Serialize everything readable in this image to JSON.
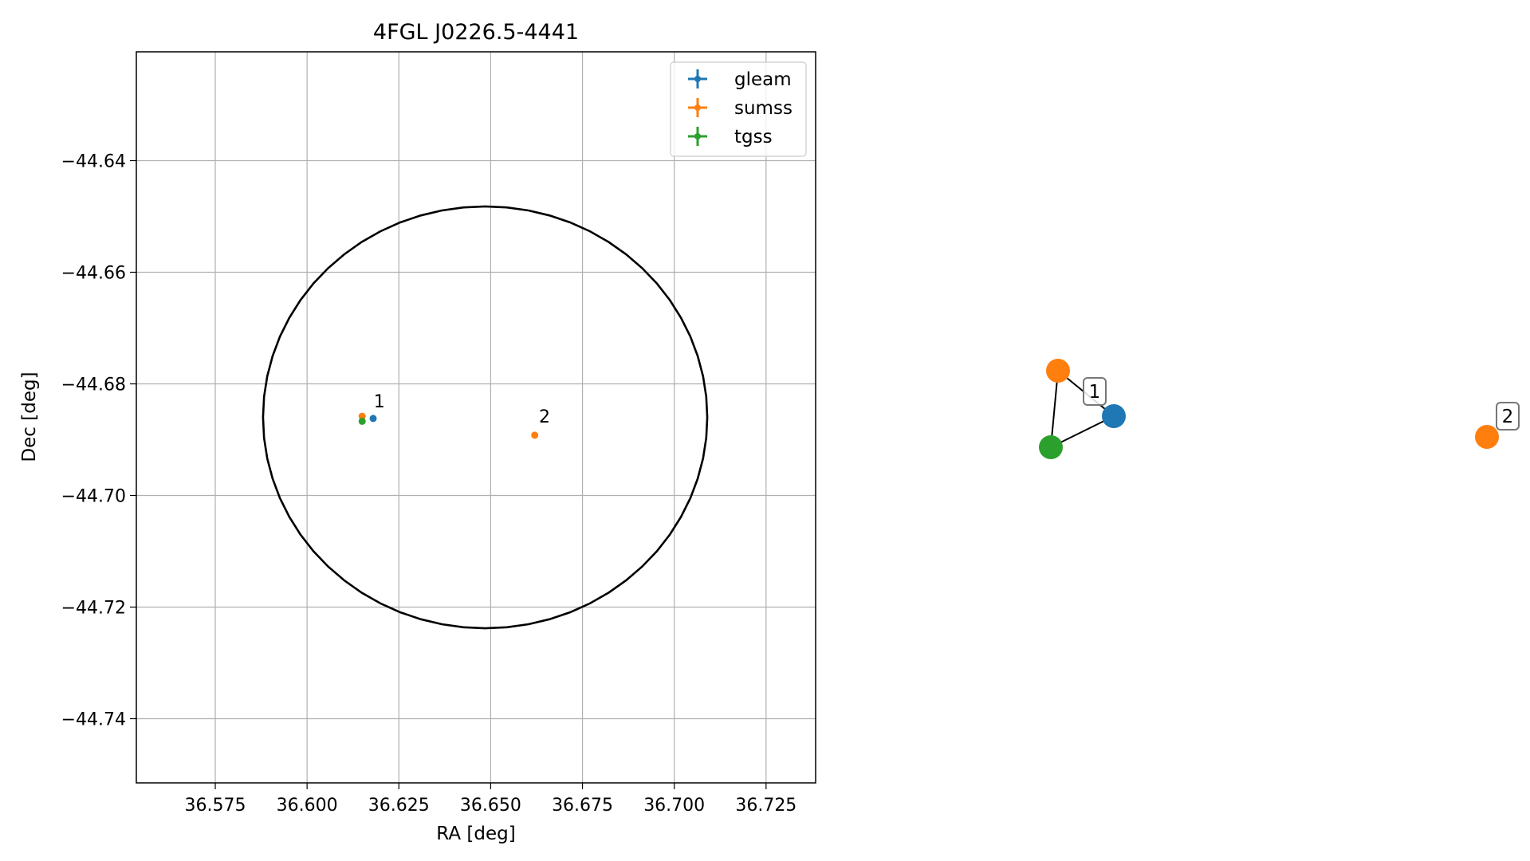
{
  "chart_data": [
    {
      "type": "scatter",
      "title": "4FGL J0226.5-4441",
      "xlabel": "RA [deg]",
      "ylabel": "Dec [deg]",
      "xlim": [
        36.5535,
        36.7385
      ],
      "ylim": [
        -44.7515,
        -44.6205
      ],
      "xticks": [
        36.575,
        36.6,
        36.625,
        36.65,
        36.675,
        36.7,
        36.725
      ],
      "xtick_labels": [
        "36.575",
        "36.600",
        "36.625",
        "36.650",
        "36.675",
        "36.700",
        "36.725"
      ],
      "yticks": [
        -44.64,
        -44.66,
        -44.68,
        -44.7,
        -44.72,
        -44.74
      ],
      "ytick_labels": [
        "−44.64",
        "−44.66",
        "−44.68",
        "−44.70",
        "−44.72",
        "−44.74"
      ],
      "grid": true,
      "legend_position": "top-right",
      "series": [
        {
          "name": "gleam",
          "color": "#1f77b4",
          "points": [
            {
              "x": 36.618,
              "y": -44.6862
            }
          ]
        },
        {
          "name": "sumss",
          "color": "#ff7f0e",
          "points": [
            {
              "x": 36.615,
              "y": -44.6858
            },
            {
              "x": 36.662,
              "y": -44.6892
            }
          ]
        },
        {
          "name": "tgss",
          "color": "#2ca02c",
          "points": [
            {
              "x": 36.615,
              "y": -44.6867
            }
          ]
        }
      ],
      "annotations": [
        {
          "text": "1",
          "x": 36.6175,
          "y": -44.6845
        },
        {
          "text": "2",
          "x": 36.6625,
          "y": -44.6872
        }
      ],
      "ellipse": {
        "center_ra": 36.6485,
        "center_dec": -44.686,
        "ra_radius": 0.0605,
        "dec_radius": 0.0378,
        "color": "#000000"
      }
    },
    {
      "type": "graph",
      "nodes": [
        {
          "id": "gleam-1",
          "color": "#1f77b4"
        },
        {
          "id": "sumss-1",
          "color": "#ff7f0e"
        },
        {
          "id": "tgss-1",
          "color": "#2ca02c"
        },
        {
          "id": "sumss-2",
          "color": "#ff7f0e"
        }
      ],
      "edges": [
        [
          "sumss-1",
          "gleam-1"
        ],
        [
          "gleam-1",
          "tgss-1"
        ],
        [
          "tgss-1",
          "sumss-1"
        ]
      ],
      "labels": [
        {
          "text": "1"
        },
        {
          "text": "2"
        }
      ]
    }
  ]
}
